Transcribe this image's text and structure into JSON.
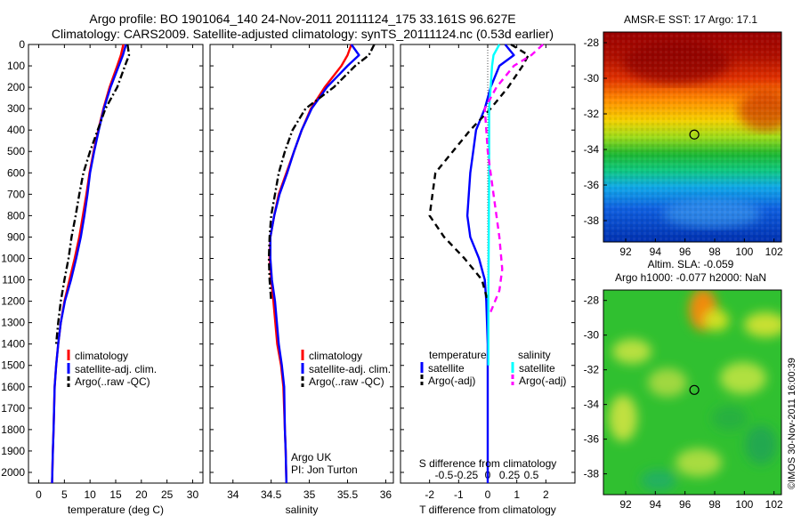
{
  "figure": {
    "title_line1": "Argo profile: BO 1901064_140 24-Nov-2011 20111124_175 33.161S 96.627E",
    "title_line2": "Climatology: CARS2009. Satellite-adjusted climatology: synTS_20111124.nc (0.53d earlier)",
    "watermark": "©IMOS 30-Nov-2011 16:00:39",
    "argo_org": "Argo UK",
    "argo_pi": "PI: Jon Turton"
  },
  "colors": {
    "climatology": "#ff0000",
    "satellite": "#0000ff",
    "argo": "#000000",
    "satellite_s": "#00ffff",
    "argo_s": "#ff00ff"
  },
  "legend_profiles": [
    "climatology",
    "satellite-adj. clim.",
    "Argo(..raw -QC)"
  ],
  "legend_diff": {
    "t_header": "temperature",
    "s_header": "salinity",
    "satellite": "satellite",
    "argo": "Argo(-adj)"
  },
  "maps": {
    "sst_title": "AMSR-E SST: 17 Argo: 17.1",
    "sla_title_line1": "Altim. SLA: -0.059",
    "sla_title_line2": "Argo h1000: -0.077 h2000: NaN"
  },
  "chart_data": [
    {
      "type": "line",
      "id": "temperature",
      "xlabel": "temperature (deg C)",
      "xlim": [
        -2,
        32
      ],
      "ylim": [
        2050,
        0
      ],
      "xticks": [
        0,
        5,
        10,
        15,
        20,
        25,
        30
      ],
      "yticks": [
        0,
        100,
        200,
        300,
        400,
        500,
        600,
        700,
        800,
        900,
        1000,
        1100,
        1200,
        1300,
        1400,
        1500,
        1600,
        1700,
        1800,
        1900,
        2000
      ],
      "series": [
        {
          "name": "climatology",
          "x": [
            16.5,
            16.0,
            15.3,
            13.8,
            12.6,
            11.6,
            10.7,
            9.9,
            9.3,
            8.6,
            7.9,
            7.0,
            6.0,
            5.0,
            4.3,
            3.8,
            3.4,
            3.1,
            2.9,
            2.75,
            2.6
          ],
          "y": [
            0,
            50,
            100,
            200,
            300,
            400,
            500,
            600,
            700,
            800,
            900,
            1000,
            1100,
            1200,
            1300,
            1400,
            1500,
            1600,
            1800,
            1900,
            2050
          ]
        },
        {
          "name": "satellite-adj. clim.",
          "x": [
            17.0,
            16.4,
            15.6,
            14.0,
            12.7,
            11.7,
            10.8,
            10.0,
            9.5,
            8.9,
            8.2,
            7.3,
            6.3,
            5.1,
            4.3,
            3.8,
            3.4,
            3.1,
            2.9,
            2.75,
            2.6
          ],
          "y": [
            0,
            50,
            100,
            200,
            300,
            400,
            500,
            600,
            700,
            800,
            900,
            1000,
            1100,
            1200,
            1300,
            1400,
            1500,
            1600,
            1800,
            1900,
            2050
          ]
        },
        {
          "name": "Argo(..raw -QC)",
          "x": [
            17.3,
            17.6,
            16.8,
            15.3,
            13.0,
            11.5,
            10.0,
            8.7,
            7.9,
            7.2,
            6.4,
            5.8,
            5.0,
            4.3,
            3.8,
            3.4
          ],
          "y": [
            0,
            50,
            100,
            200,
            300,
            400,
            500,
            600,
            700,
            800,
            900,
            1000,
            1100,
            1200,
            1300,
            1400
          ]
        }
      ]
    },
    {
      "type": "line",
      "id": "salinity",
      "xlabel": "salinity",
      "xlim": [
        33.7,
        36.1
      ],
      "ylim": [
        2050,
        0
      ],
      "xticks": [
        34,
        34.5,
        35,
        35.5,
        36
      ],
      "series": [
        {
          "name": "climatology",
          "x": [
            35.55,
            35.5,
            35.42,
            35.2,
            35.02,
            34.9,
            34.8,
            34.7,
            34.6,
            34.54,
            34.49,
            34.48,
            34.5,
            34.53,
            34.58,
            34.63,
            34.66,
            34.68,
            34.69,
            34.7
          ],
          "y": [
            0,
            50,
            100,
            200,
            300,
            400,
            500,
            600,
            700,
            800,
            900,
            1000,
            1100,
            1200,
            1400,
            1500,
            1600,
            1800,
            1900,
            2050
          ]
        },
        {
          "name": "satellite-adj. clim.",
          "x": [
            35.55,
            35.65,
            35.5,
            35.23,
            35.03,
            34.9,
            34.8,
            34.71,
            34.61,
            34.54,
            34.49,
            34.49,
            34.51,
            34.55,
            34.6,
            34.64,
            34.67,
            34.68,
            34.69,
            34.7
          ],
          "y": [
            0,
            50,
            100,
            200,
            300,
            400,
            500,
            600,
            700,
            800,
            900,
            1000,
            1100,
            1200,
            1400,
            1500,
            1600,
            1800,
            1900,
            2050
          ]
        },
        {
          "name": "Argo(..raw -QC)",
          "x": [
            35.85,
            35.78,
            35.6,
            35.32,
            34.95,
            34.78,
            34.68,
            34.6,
            34.55,
            34.5,
            34.48,
            34.47,
            34.48,
            34.5
          ],
          "y": [
            0,
            50,
            100,
            200,
            300,
            400,
            500,
            600,
            700,
            800,
            900,
            1000,
            1100,
            1200
          ]
        }
      ]
    },
    {
      "type": "line",
      "id": "difference",
      "xlabel": "T difference from climatology",
      "xlabel_top": "S difference from climatology",
      "xlim": [
        -3,
        3
      ],
      "ylim": [
        2050,
        0
      ],
      "xticks": [
        -2,
        -1,
        0,
        1,
        2
      ],
      "xticks_s": [
        "-0.5",
        "-0.25",
        "0",
        "0.25",
        "0.5"
      ],
      "series": [
        {
          "name": "temperature satellite",
          "x": [
            0.6,
            0.9,
            0.4,
            0.1,
            -0.1,
            -0.4,
            -0.5,
            -0.6,
            -0.7,
            -0.6,
            -0.3,
            -0.1,
            -0.05,
            0,
            0,
            0
          ],
          "y": [
            0,
            50,
            100,
            200,
            300,
            400,
            500,
            600,
            800,
            900,
            1000,
            1100,
            1200,
            1400,
            1600,
            2050
          ]
        },
        {
          "name": "temperature Argo(-adj)",
          "x": [
            0.8,
            1.4,
            1.2,
            0.7,
            0.1,
            -0.6,
            -1.2,
            -1.8,
            -2.0,
            -1.5,
            -0.8,
            -0.2,
            0
          ],
          "y": [
            0,
            50,
            100,
            200,
            300,
            400,
            500,
            600,
            800,
            900,
            1000,
            1100,
            1200
          ]
        },
        {
          "name": "salinity satellite",
          "x": [
            0.4,
            0.2,
            0.15,
            0.1,
            0.05,
            0.05,
            0.05,
            0.04,
            0.03,
            0.02,
            0.02
          ],
          "y": [
            0,
            50,
            100,
            200,
            300,
            400,
            600,
            800,
            1000,
            1200,
            1500
          ]
        },
        {
          "name": "salinity Argo(-adj)",
          "x": [
            1.9,
            1.5,
            0.9,
            0.3,
            -0.1,
            -0.05,
            0.0,
            0.2,
            0.4,
            0.5,
            0.4,
            0.1
          ],
          "y": [
            0,
            50,
            100,
            200,
            300,
            400,
            500,
            700,
            900,
            1050,
            1150,
            1250
          ]
        }
      ]
    },
    {
      "type": "heatmap",
      "id": "sst_map",
      "title": "AMSR-E SST: 17 Argo: 17.1",
      "xlim": [
        90.5,
        102.5
      ],
      "ylim": [
        -39.2,
        -27.4
      ],
      "xticks": [
        92,
        94,
        96,
        98,
        100,
        102
      ],
      "yticks": [
        -28,
        -30,
        -32,
        -34,
        -36,
        -38
      ],
      "argo_position": [
        96.627,
        -33.161
      ]
    },
    {
      "type": "heatmap",
      "id": "sla_map",
      "title": "Altim. SLA: -0.059",
      "xlim": [
        90.5,
        102.5
      ],
      "ylim": [
        -39.2,
        -27.4
      ],
      "xticks": [
        92,
        94,
        96,
        98,
        100,
        102
      ],
      "yticks": [
        -28,
        -30,
        -32,
        -34,
        -36,
        -38
      ],
      "argo_position": [
        96.627,
        -33.161
      ]
    }
  ]
}
